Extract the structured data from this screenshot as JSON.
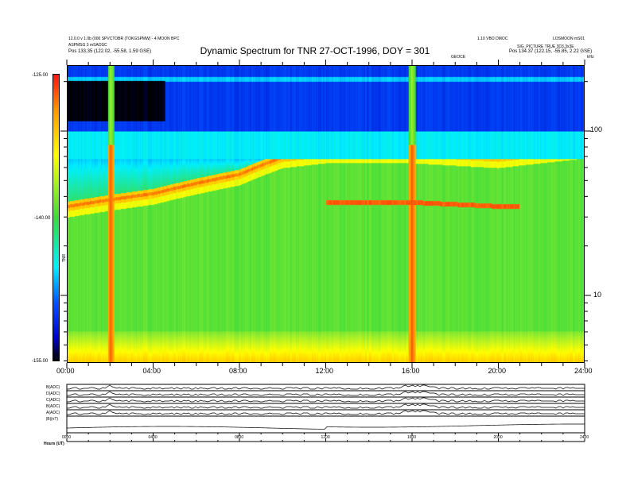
{
  "header": {
    "left_line1": "12.0.0 v 1.0b (000 SPVCTOBR (TOKGSPMW) - 4 MOON BPC",
    "left_line2": "ASPMSG 3 mSAOSC",
    "left_line3": "Pos   133.35 (122.02, -55.58, 1.59 GSE)",
    "right_line1": "1.10 VBO DMOC",
    "right_line1b": "LOSMOON mS01",
    "right_line2": "SIG_PICTURE TRUE 3D3,3x3E",
    "right_line3": "Pos   134.37 (122.15, -55.85, 2.22 GSE)",
    "mid_tag": "GEOCE"
  },
  "chart_data": {
    "type": "heatmap",
    "title": "Dynamic Spectrum for TNR 27-OCT-1996, DOY = 301",
    "xlabel": "",
    "x_tick_labels": [
      "00:00",
      "04:00",
      "08:00",
      "12:00",
      "16:00",
      "20:00",
      "24:00"
    ],
    "xlim_hours": [
      0,
      24
    ],
    "ylabel": "kHz",
    "y_scale": "log",
    "y_tick_labels": [
      "100",
      "10"
    ],
    "ylim_khz": [
      4,
      250
    ],
    "colorbar": {
      "label": "TNR",
      "tick_labels": [
        "-125.00",
        "-140.00",
        "-155.00"
      ],
      "range": [
        -155,
        -125
      ]
    },
    "features": {
      "main_emission_ridge_khz": {
        "hours": [
          0,
          4,
          8,
          10,
          12,
          16,
          20,
          24
        ],
        "khz": [
          35,
          42,
          55,
          70,
          75,
          75,
          70,
          80
        ]
      },
      "secondary_ridge_khz": {
        "hours": [
          12,
          16,
          20,
          21
        ],
        "khz": [
          37,
          37,
          35,
          35
        ]
      },
      "bright_bursts_hours": [
        2,
        16
      ]
    }
  },
  "lower_panels": {
    "labels": [
      "B(ADC)",
      "D(ADC)",
      "C(ADC)",
      "B(ADC)",
      "A(ADC)",
      "|B|(nT)"
    ],
    "x_tick_labels": [
      "0000",
      "0400",
      "0800",
      "1200",
      "1600",
      "2000",
      "2400"
    ],
    "footer_label": "Hours   (UT)"
  }
}
